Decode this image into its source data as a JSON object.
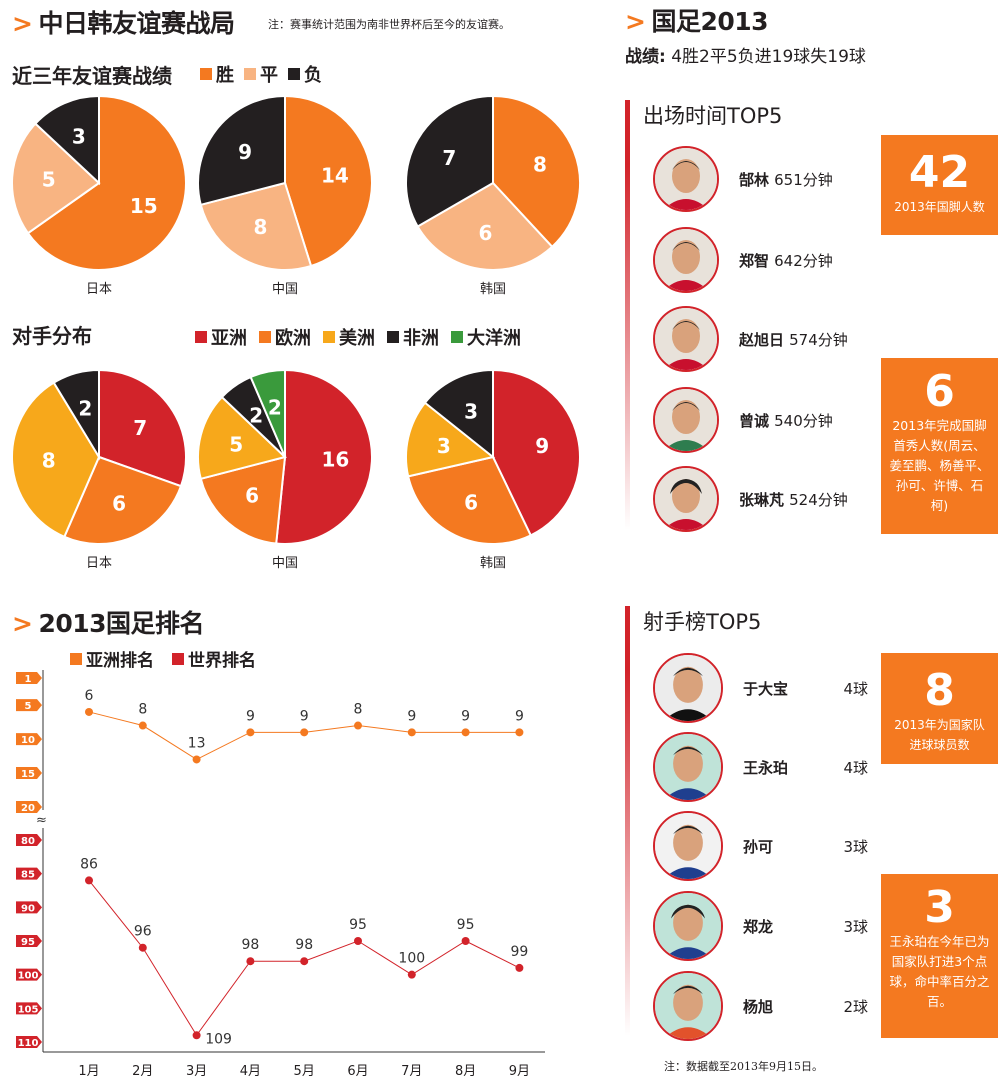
{
  "header": {
    "title": "中日韩友谊赛战局",
    "note": "注：赛事统计范围为南非世界杯后至今的友谊赛。"
  },
  "results_section": {
    "title": "近三年友谊赛战绩",
    "legend": [
      {
        "label": "胜",
        "color": "#f47920"
      },
      {
        "label": "平",
        "color": "#f8b482"
      },
      {
        "label": "负",
        "color": "#231f20"
      }
    ]
  },
  "opponents_section": {
    "title": "对手分布",
    "legend": [
      {
        "label": "亚洲",
        "color": "#d2232a"
      },
      {
        "label": "欧洲",
        "color": "#f47920"
      },
      {
        "label": "美洲",
        "color": "#f7a81b"
      },
      {
        "label": "非洲",
        "color": "#231f20"
      },
      {
        "label": "大洋洲",
        "color": "#3a9a3c"
      }
    ]
  },
  "ranking_section": {
    "title": "2013国足排名",
    "legend": [
      {
        "label": "亚洲排名",
        "color": "#f47920"
      },
      {
        "label": "世界排名",
        "color": "#d2232a"
      }
    ]
  },
  "national_team": {
    "title": "国足2013",
    "record_label": "战绩:",
    "record_value": "4胜2平5负进19球失19球"
  },
  "playing_time": {
    "title": "出场时间TOP5",
    "players": [
      {
        "name": "郜林",
        "value": "651分钟"
      },
      {
        "name": "郑智",
        "value": "642分钟"
      },
      {
        "name": "赵旭日",
        "value": "574分钟"
      },
      {
        "name": "曾诚",
        "value": "540分钟"
      },
      {
        "name": "张琳芃",
        "value": "524分钟"
      }
    ],
    "boxes": [
      {
        "big": "42",
        "small": "2013年国脚人数"
      },
      {
        "big": "6",
        "small": "2013年完成国脚首秀人数(周云、姜至鹏、杨善平、孙可、许博、石柯)"
      }
    ]
  },
  "scorers": {
    "title": "射手榜TOP5",
    "players": [
      {
        "name": "于大宝",
        "value": "4球"
      },
      {
        "name": "王永珀",
        "value": "4球"
      },
      {
        "name": "孙可",
        "value": "3球"
      },
      {
        "name": "郑龙",
        "value": "3球"
      },
      {
        "name": "杨旭",
        "value": "2球"
      }
    ],
    "boxes": [
      {
        "big": "8",
        "small": "2013年为国家队进球球员数"
      },
      {
        "big": "3",
        "small": "王永珀在今年已为国家队打进3个点球，命中率百分之百。"
      }
    ],
    "note": "注：数据截至2013年9月15日。"
  },
  "chart_data": [
    {
      "type": "pie",
      "title": "近三年友谊赛战绩",
      "categories": [
        "胜",
        "平",
        "负"
      ],
      "charts": [
        {
          "label": "日本",
          "values": [
            15,
            5,
            3
          ]
        },
        {
          "label": "中国",
          "values": [
            14,
            8,
            9
          ]
        },
        {
          "label": "韩国",
          "values": [
            8,
            6,
            7
          ]
        }
      ]
    },
    {
      "type": "pie",
      "title": "对手分布",
      "categories": [
        "亚洲",
        "欧洲",
        "美洲",
        "非洲",
        "大洋洲"
      ],
      "charts": [
        {
          "label": "日本",
          "values": [
            7,
            6,
            8,
            2,
            0
          ]
        },
        {
          "label": "中国",
          "values": [
            16,
            6,
            5,
            2,
            2
          ]
        },
        {
          "label": "韩国",
          "values": [
            9,
            6,
            3,
            3,
            0
          ]
        }
      ]
    },
    {
      "type": "line",
      "title": "2013国足排名",
      "categories": [
        "1月",
        "2月",
        "3月",
        "4月",
        "5月",
        "6月",
        "7月",
        "8月",
        "9月"
      ],
      "series": [
        {
          "name": "亚洲排名",
          "values": [
            6,
            8,
            13,
            9,
            9,
            8,
            9,
            9,
            9
          ]
        },
        {
          "name": "世界排名",
          "values": [
            86,
            96,
            109,
            98,
            98,
            95,
            100,
            95,
            99
          ]
        }
      ],
      "y_ticks_top": [
        "1",
        "5",
        "10",
        "15",
        "20"
      ],
      "y_ticks_bottom": [
        "80",
        "85",
        "90",
        "95",
        "100",
        "105",
        "110"
      ]
    }
  ]
}
